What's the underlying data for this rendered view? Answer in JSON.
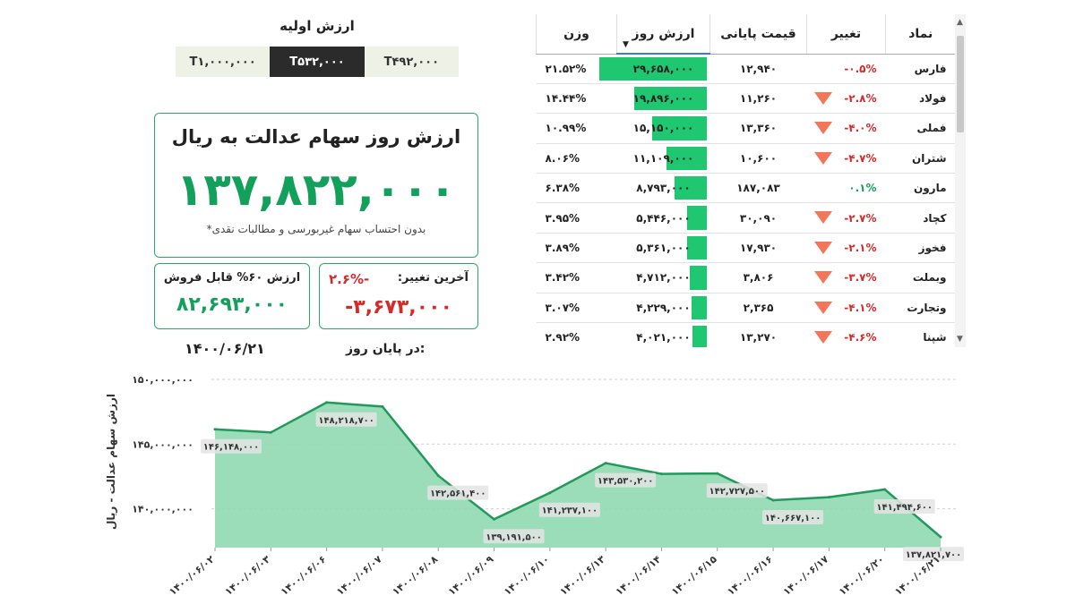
{
  "initial": {
    "title": "ارزش اولیه",
    "options": [
      "T۴۹۲,۰۰۰",
      "T۵۳۲,۰۰۰",
      "T۱,۰۰۰,۰۰۰"
    ],
    "selected_index": 1
  },
  "summary": {
    "title": "ارزش روز سهام عدالت به ریال",
    "value": "۱۳۷,۸۲۲,۰۰۰",
    "note": "*بدون احتساب سهام غیربورسی و مطالبات نقدی",
    "sellable_title": "ارزش ۶۰% قابل فروش",
    "sellable_value": "۸۲,۶۹۳,۰۰۰",
    "change_title": "آخرین تغییر:",
    "change_pct": "-۲.۶%",
    "change_value": "-۳,۶۷۳,۰۰۰",
    "end_label": "در پایان روز:",
    "end_date": "۱۴۰۰/۰۶/۲۱"
  },
  "table": {
    "headers": {
      "symbol": "نماد",
      "change": "تغییر",
      "close": "قیمت پایانی",
      "value": "ارزش روز",
      "weight": "وزن"
    },
    "rows": [
      {
        "symbol": "فارس",
        "change": "-۰.۵%",
        "dir": "neg",
        "arrow": false,
        "close": "۱۲,۹۴۰",
        "value": "۲۹,۶۵۸,۰۰۰",
        "value_num": 29658000,
        "weight": "۲۱.۵۲%"
      },
      {
        "symbol": "فولاد",
        "change": "-۲.۸%",
        "dir": "neg",
        "arrow": true,
        "close": "۱۱,۲۶۰",
        "value": "۱۹,۸۹۶,۰۰۰",
        "value_num": 19896000,
        "weight": "۱۴.۴۴%"
      },
      {
        "symbol": "فملی",
        "change": "-۴.۰%",
        "dir": "neg",
        "arrow": true,
        "close": "۱۳,۳۶۰",
        "value": "۱۵,۱۵۰,۰۰۰",
        "value_num": 15150000,
        "weight": "۱۰.۹۹%"
      },
      {
        "symbol": "شتران",
        "change": "-۴.۷%",
        "dir": "neg",
        "arrow": true,
        "close": "۱۰,۶۰۰",
        "value": "۱۱,۱۰۹,۰۰۰",
        "value_num": 11109000,
        "weight": "۸.۰۶%"
      },
      {
        "symbol": "مارون",
        "change": "۰.۱%",
        "dir": "pos",
        "arrow": false,
        "close": "۱۸۷,۰۸۳",
        "value": "۸,۷۹۳,۰۰۰",
        "value_num": 8793000,
        "weight": "۶.۳۸%"
      },
      {
        "symbol": "کچاد",
        "change": "-۲.۷%",
        "dir": "neg",
        "arrow": true,
        "close": "۳۰,۰۹۰",
        "value": "۵,۴۴۶,۰۰۰",
        "value_num": 5446000,
        "weight": "۳.۹۵%"
      },
      {
        "symbol": "فخوز",
        "change": "-۲.۱%",
        "dir": "neg",
        "arrow": true,
        "close": "۱۷,۹۳۰",
        "value": "۵,۳۶۱,۰۰۰",
        "value_num": 5361000,
        "weight": "۳.۸۹%"
      },
      {
        "symbol": "وبملت",
        "change": "-۳.۷%",
        "dir": "neg",
        "arrow": true,
        "close": "۳,۸۰۶",
        "value": "۴,۷۱۲,۰۰۰",
        "value_num": 4712000,
        "weight": "۳.۴۲%"
      },
      {
        "symbol": "وتجارت",
        "change": "-۴.۱%",
        "dir": "neg",
        "arrow": true,
        "close": "۲,۳۶۵",
        "value": "۴,۲۲۹,۰۰۰",
        "value_num": 4229000,
        "weight": "۳.۰۷%"
      },
      {
        "symbol": "شپنا",
        "change": "-۴.۶%",
        "dir": "neg",
        "arrow": true,
        "close": "۱۳,۲۷۰",
        "value": "۴,۰۲۱,۰۰۰",
        "value_num": 4021000,
        "weight": "۲.۹۲%"
      }
    ]
  },
  "colors": {
    "accent": "#13a05a",
    "area": "#8fd9b0",
    "line": "#22995a",
    "negative": "#d42a2a",
    "arrow": "#f2765a"
  },
  "chart_data": {
    "type": "area",
    "ylabel": "ارزش سهام عدالت - ریال",
    "ylim": [
      137000000,
      150000000
    ],
    "yticks": [
      140000000,
      145000000,
      150000000
    ],
    "ytick_labels": [
      "۱۴۰,۰۰۰,۰۰۰",
      "۱۴۵,۰۰۰,۰۰۰",
      "۱۵۰,۰۰۰,۰۰۰"
    ],
    "x": [
      "۱۴۰۰/۰۶/۰۲",
      "۱۴۰۰/۰۶/۰۳",
      "۱۴۰۰/۰۶/۰۶",
      "۱۴۰۰/۰۶/۰۷",
      "۱۴۰۰/۰۶/۰۸",
      "۱۴۰۰/۰۶/۰۹",
      "۱۴۰۰/۰۶/۱۰",
      "۱۴۰۰/۰۶/۱۳",
      "۱۴۰۰/۰۶/۱۴",
      "۱۴۰۰/۰۶/۱۵",
      "۱۴۰۰/۰۶/۱۶",
      "۱۴۰۰/۰۶/۱۷",
      "۱۴۰۰/۰۶/۲۰",
      "۱۴۰۰/۰۶/۲۱"
    ],
    "values": [
      146148000,
      145900000,
      148218700,
      147900000,
      142561400,
      139191500,
      141237100,
      143530200,
      142700000,
      142727500,
      140667100,
      140900000,
      141494600,
      137821700
    ],
    "data_labels": [
      {
        "index": 0,
        "text": "۱۴۶,۱۴۸,۰۰۰"
      },
      {
        "index": 2,
        "text": "۱۴۸,۲۱۸,۷۰۰"
      },
      {
        "index": 4,
        "text": "۱۴۲,۵۶۱,۴۰۰"
      },
      {
        "index": 5,
        "text": "۱۳۹,۱۹۱,۵۰۰"
      },
      {
        "index": 6,
        "text": "۱۴۱,۲۳۷,۱۰۰"
      },
      {
        "index": 7,
        "text": "۱۴۳,۵۳۰,۲۰۰"
      },
      {
        "index": 9,
        "text": "۱۴۲,۷۲۷,۵۰۰"
      },
      {
        "index": 10,
        "text": "۱۴۰,۶۶۷,۱۰۰"
      },
      {
        "index": 12,
        "text": "۱۴۱,۴۹۴,۶۰۰"
      },
      {
        "index": 13,
        "text": "۱۳۷,۸۲۱,۷۰۰"
      }
    ],
    "grid": true
  }
}
